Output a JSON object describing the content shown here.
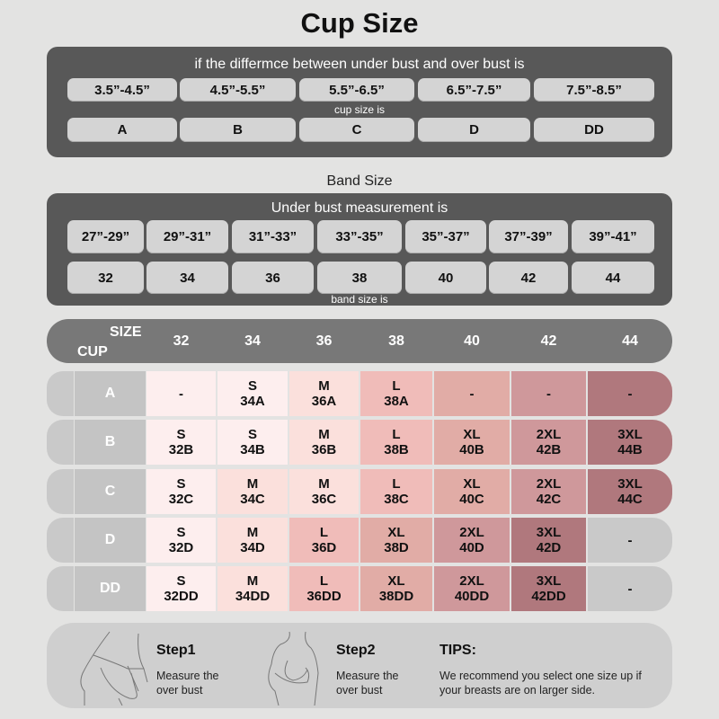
{
  "title": "Cup Size",
  "cup_panel": {
    "heading": "if the differmce between under bust and over bust is",
    "ranges": [
      "3.5”-4.5”",
      "4.5”-5.5”",
      "5.5”-6.5”",
      "6.5”-7.5”",
      "7.5”-8.5”"
    ],
    "middle_label": "cup size is",
    "cups": [
      "A",
      "B",
      "C",
      "D",
      "DD"
    ]
  },
  "band_label": "Band Size",
  "band_panel": {
    "heading": "Under bust measurement is",
    "ranges": [
      "27”-29”",
      "29”-31”",
      "31”-33”",
      "33”-35”",
      "35”-37”",
      "37”-39”",
      "39”-41”"
    ],
    "bands": [
      "32",
      "34",
      "36",
      "38",
      "40",
      "42",
      "44"
    ],
    "bottom_label": "band size is"
  },
  "table": {
    "size_header": "SIZE",
    "cup_header": "CUP",
    "columns": [
      "32",
      "34",
      "36",
      "38",
      "40",
      "42",
      "44"
    ],
    "shade_colors": [
      "#fdeeee",
      "#fbe0dc",
      "#f0bcb9",
      "#e1aca6",
      "#cf989b",
      "#b0787d",
      "#c9c9c9"
    ],
    "rows": [
      {
        "cup": "A",
        "cells": [
          {
            "size": "-",
            "code": "",
            "shade": 0
          },
          {
            "size": "S",
            "code": "34A",
            "shade": 0
          },
          {
            "size": "M",
            "code": "36A",
            "shade": 1
          },
          {
            "size": "L",
            "code": "38A",
            "shade": 2
          },
          {
            "size": "-",
            "code": "",
            "shade": 3
          },
          {
            "size": "-",
            "code": "",
            "shade": 4
          },
          {
            "size": "-",
            "code": "",
            "shade": 5
          }
        ]
      },
      {
        "cup": "B",
        "cells": [
          {
            "size": "S",
            "code": "32B",
            "shade": 0
          },
          {
            "size": "S",
            "code": "34B",
            "shade": 0
          },
          {
            "size": "M",
            "code": "36B",
            "shade": 1
          },
          {
            "size": "L",
            "code": "38B",
            "shade": 2
          },
          {
            "size": "XL",
            "code": "40B",
            "shade": 3
          },
          {
            "size": "2XL",
            "code": "42B",
            "shade": 4
          },
          {
            "size": "3XL",
            "code": "44B",
            "shade": 5
          }
        ]
      },
      {
        "cup": "C",
        "cells": [
          {
            "size": "S",
            "code": "32C",
            "shade": 0
          },
          {
            "size": "M",
            "code": "34C",
            "shade": 1
          },
          {
            "size": "M",
            "code": "36C",
            "shade": 1
          },
          {
            "size": "L",
            "code": "38C",
            "shade": 2
          },
          {
            "size": "XL",
            "code": "40C",
            "shade": 3
          },
          {
            "size": "2XL",
            "code": "42C",
            "shade": 4
          },
          {
            "size": "3XL",
            "code": "44C",
            "shade": 5
          }
        ]
      },
      {
        "cup": "D",
        "cells": [
          {
            "size": "S",
            "code": "32D",
            "shade": 0
          },
          {
            "size": "M",
            "code": "34D",
            "shade": 1
          },
          {
            "size": "L",
            "code": "36D",
            "shade": 2
          },
          {
            "size": "XL",
            "code": "38D",
            "shade": 3
          },
          {
            "size": "2XL",
            "code": "40D",
            "shade": 4
          },
          {
            "size": "3XL",
            "code": "42D",
            "shade": 5
          },
          {
            "size": "-",
            "code": "",
            "shade": 6
          }
        ]
      },
      {
        "cup": "DD",
        "cells": [
          {
            "size": "S",
            "code": "32DD",
            "shade": 0
          },
          {
            "size": "M",
            "code": "34DD",
            "shade": 1
          },
          {
            "size": "L",
            "code": "36DD",
            "shade": 2
          },
          {
            "size": "XL",
            "code": "38DD",
            "shade": 3
          },
          {
            "size": "2XL",
            "code": "40DD",
            "shade": 4
          },
          {
            "size": "3XL",
            "code": "42DD",
            "shade": 5
          },
          {
            "size": "-",
            "code": "",
            "shade": 6
          }
        ]
      }
    ]
  },
  "tips": {
    "step1_title": "Step1",
    "step1_line1": "Measure the",
    "step1_line2": "over bust",
    "step2_title": "Step2",
    "step2_line1": "Measure the",
    "step2_line2": "over bust",
    "tips_title": "TIPS:",
    "tips_line1": "We recommend you select one size up if",
    "tips_line2": "your breasts are on larger side."
  }
}
